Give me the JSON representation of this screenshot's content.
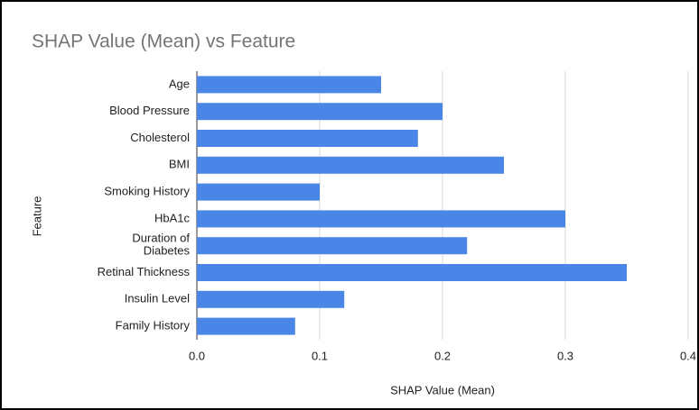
{
  "chart_data": {
    "type": "bar",
    "orientation": "horizontal",
    "title": "SHAP Value (Mean) vs Feature",
    "x_label": "SHAP Value (Mean)",
    "y_label": "Feature",
    "categories": [
      "Age",
      "Blood Pressure",
      "Cholesterol",
      "BMI",
      "Smoking History",
      "HbA1c",
      "Duration of Diabetes",
      "Retinal Thickness",
      "Insulin Level",
      "Family History"
    ],
    "values": [
      0.15,
      0.2,
      0.18,
      0.25,
      0.1,
      0.3,
      0.22,
      0.35,
      0.12,
      0.08
    ],
    "color": "#4a86e8",
    "xlim": [
      0,
      0.4
    ],
    "xticks": [
      {
        "value": 0,
        "label": "0.0"
      },
      0.1,
      0.2,
      0.3,
      0.4
    ],
    "grid": true
  }
}
